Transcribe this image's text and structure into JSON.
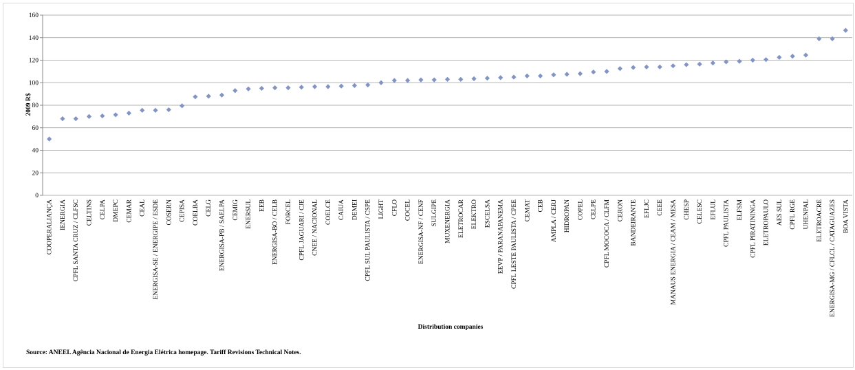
{
  "chart_data": {
    "type": "scatter",
    "y_label": "2009 R$",
    "x_label": "Distribution companies",
    "source": "Source: ANEEL Agência Nacional de Energia Elétrica homepage. Tariff Revisions Technical Notes.",
    "color": "#8294c4",
    "grid": true,
    "ylim": [
      0,
      160
    ],
    "yticks": [
      0,
      20,
      40,
      60,
      80,
      100,
      120,
      140,
      160
    ],
    "categories": [
      "COOPERALIANÇA",
      "IENERGIA",
      "CPFL  SANTA CRUZ / CLFSC",
      "CELTINS",
      "CELPA",
      "DMEPC",
      "CEMAR",
      "CEAL",
      "ENERGISA-SE / ENERGIPE / ESDE",
      "COSERN",
      "CEPISA",
      "COELBA",
      "CELG",
      "ENERGISA-PB / SAELPA",
      "CEMIG",
      "ENERSUL",
      "EEB",
      "ENERGISA-BO / CELB",
      "FORCEL",
      "CPFL JAGUARI / CJE",
      "CNEE / NACIONAL",
      "COELCE",
      "CAIUA",
      "DEMEI",
      "CPFL SUL PAULISTA / CSPE",
      "LIGHT",
      "CFLO",
      "COCEL",
      "ENERGISA-NF / CENF",
      "SULGIPE",
      "MUXENERGIA",
      "ELETROCAR",
      "ELEKTRO",
      "ESCELSA",
      "EEVP / PARANAPANEMA",
      "CPFL LESTE PAULISTA / CPEE",
      "CEMAT",
      "CEB",
      "AMPLA / CERJ",
      "HIDROPAN",
      "COPEL",
      "CELPE",
      "CPFL MOCOCA / CLFM",
      "CERON",
      "BANDEIRANTE",
      "EFLJC",
      "CEEE",
      "MANAUS ENERGIA / CEAM / MESA",
      "CHESP",
      "CELESC",
      "EFLUL",
      "CPFL  PAULISTA",
      "ELFSM",
      "CPFL  PIRATININGA",
      "ELETROPAULO",
      "AES SUL",
      "CPFL RGE",
      "UHENPAL",
      "ELETROACRE",
      "ENERGISA-MG / CFLCL / CATAGUAZES",
      "BOA VISTA"
    ],
    "values": [
      50,
      68,
      68,
      70,
      70.5,
      71.5,
      73,
      75.5,
      75.5,
      76,
      79.5,
      87.5,
      88,
      89,
      93,
      94.5,
      95,
      95.5,
      95.5,
      96,
      96.5,
      96.5,
      97,
      97.5,
      98,
      100,
      102,
      102,
      102.5,
      102.5,
      103,
      103,
      103.5,
      104,
      104.5,
      105,
      106,
      106,
      107,
      107.5,
      108,
      109.5,
      110,
      112.5,
      113.5,
      114,
      114,
      115,
      116,
      116.5,
      117.5,
      118.5,
      119,
      120,
      120.5,
      122.5,
      123.5,
      124.5,
      139,
      139,
      146.5
    ]
  }
}
